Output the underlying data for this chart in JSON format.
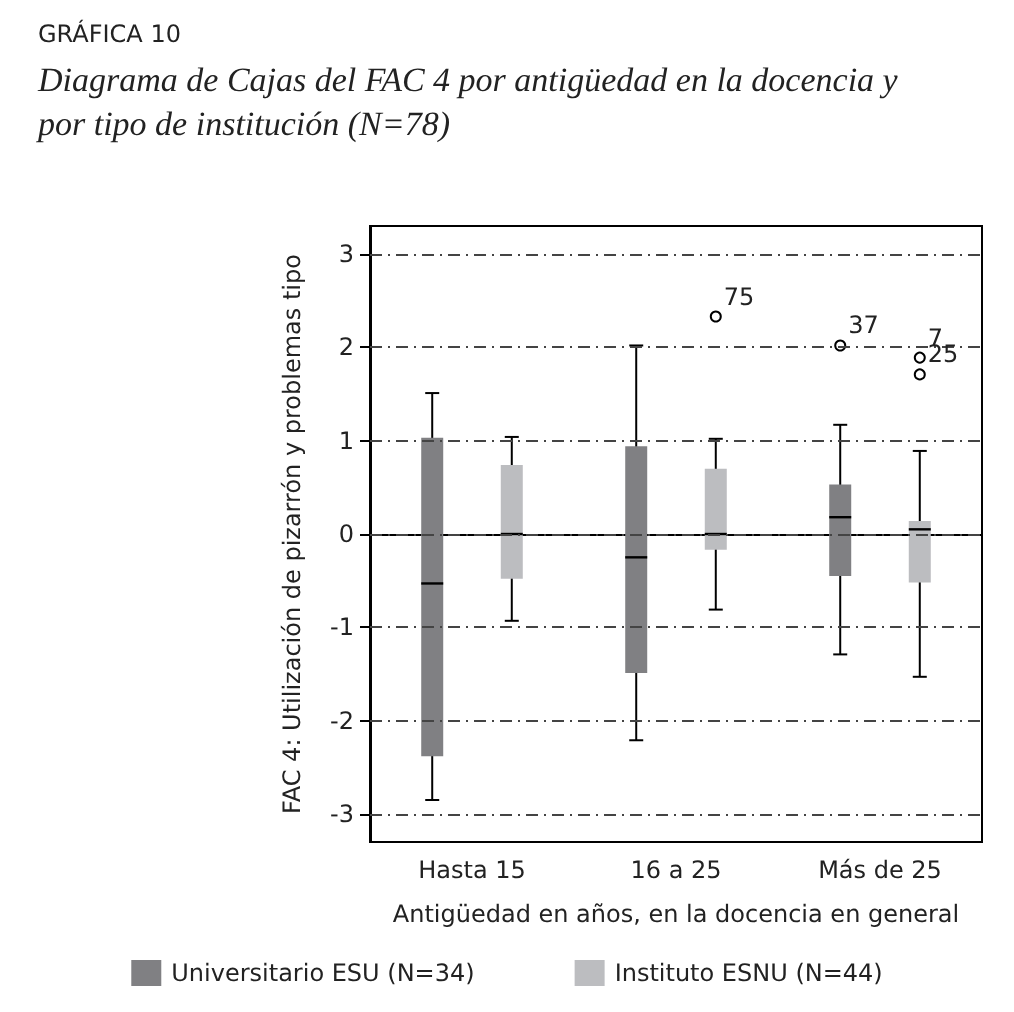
{
  "chart_data": {
    "type": "box",
    "title": "GRÁFICA 10",
    "subtitle": "Diagrama de Cajas del FAC 4 por antigüedad en la docencia y por tipo de institución (N=78)",
    "categories": [
      "Hasta 15",
      "16 a 25",
      "Más de 25"
    ],
    "xlabel": "Antigüedad en años, en la docencia en general",
    "ylabel": "FAC 4: Utilización de pizarrón y problemas tipo",
    "series": [
      {
        "name": "Universitario ESU (N=34)",
        "color": "#808083",
        "boxes": [
          {
            "low": -2.85,
            "q1": -2.38,
            "median": -0.53,
            "q3": 1.03,
            "high": 1.51
          },
          {
            "low": -2.21,
            "q1": -1.49,
            "median": -0.25,
            "q3": 0.94,
            "high": 2.02
          },
          {
            "low": -1.29,
            "q1": -0.45,
            "median": 0.18,
            "q3": 0.53,
            "high": 1.17,
            "outliers": [
              2.02
            ]
          }
        ]
      },
      {
        "name": "Instituto ESNU (N=44)",
        "color": "#bcbdc0",
        "boxes": [
          {
            "low": -0.93,
            "q1": -0.48,
            "median": 0.0,
            "q3": 0.74,
            "high": 1.04
          },
          {
            "low": -0.81,
            "q1": -0.17,
            "median": 0.0,
            "q3": 0.7,
            "high": 1.02,
            "outliers": [
              2.33
            ]
          },
          {
            "low": -1.53,
            "q1": -0.52,
            "median": 0.05,
            "q3": 0.14,
            "high": 0.89,
            "outliers": [
              1.89,
              1.71
            ]
          }
        ]
      }
    ],
    "annotations": [
      "37",
      "75",
      "7",
      "25"
    ],
    "ylim": [
      -3.3,
      3.3
    ],
    "yticks": [
      -3,
      -2,
      -1,
      0,
      1,
      2,
      3
    ],
    "grid": "y",
    "legend": "bottom"
  }
}
